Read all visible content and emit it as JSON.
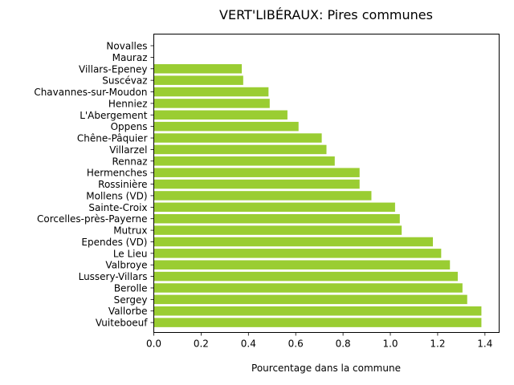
{
  "chart_data": {
    "type": "bar",
    "orientation": "horizontal",
    "title": "VERT'LIBÉRAUX: Pires communes",
    "xlabel": "Pourcentage dans la commune",
    "ylabel": "",
    "xlim": [
      0,
      1.46
    ],
    "xticks": [
      0.0,
      0.2,
      0.4,
      0.6,
      0.8,
      1.0,
      1.2,
      1.4
    ],
    "xtick_labels": [
      "0.0",
      "0.2",
      "0.4",
      "0.6",
      "0.8",
      "1.0",
      "1.2",
      "1.4"
    ],
    "bar_color": "#9acd32",
    "grid": false,
    "categories": [
      "Novalles",
      "Mauraz",
      "Villars-Epeney",
      "Suscévaz",
      "Chavannes-sur-Moudon",
      "Henniez",
      "L'Abergement",
      "Oppens",
      "Chêne-Pâquier",
      "Villarzel",
      "Rennaz",
      "Hermenches",
      "Rossinière",
      "Mollens (VD)",
      "Sainte-Croix",
      "Corcelles-près-Payerne",
      "Mutrux",
      "Ependes (VD)",
      "Le Lieu",
      "Valbroye",
      "Lussery-Villars",
      "Berolle",
      "Sergey",
      "Vallorbe",
      "Vuiteboeuf"
    ],
    "values": [
      0.0,
      0.0,
      0.372,
      0.378,
      0.485,
      0.49,
      0.565,
      0.612,
      0.71,
      0.73,
      0.765,
      0.87,
      0.87,
      0.92,
      1.02,
      1.04,
      1.048,
      1.18,
      1.215,
      1.252,
      1.285,
      1.305,
      1.325,
      1.385,
      1.385
    ]
  }
}
